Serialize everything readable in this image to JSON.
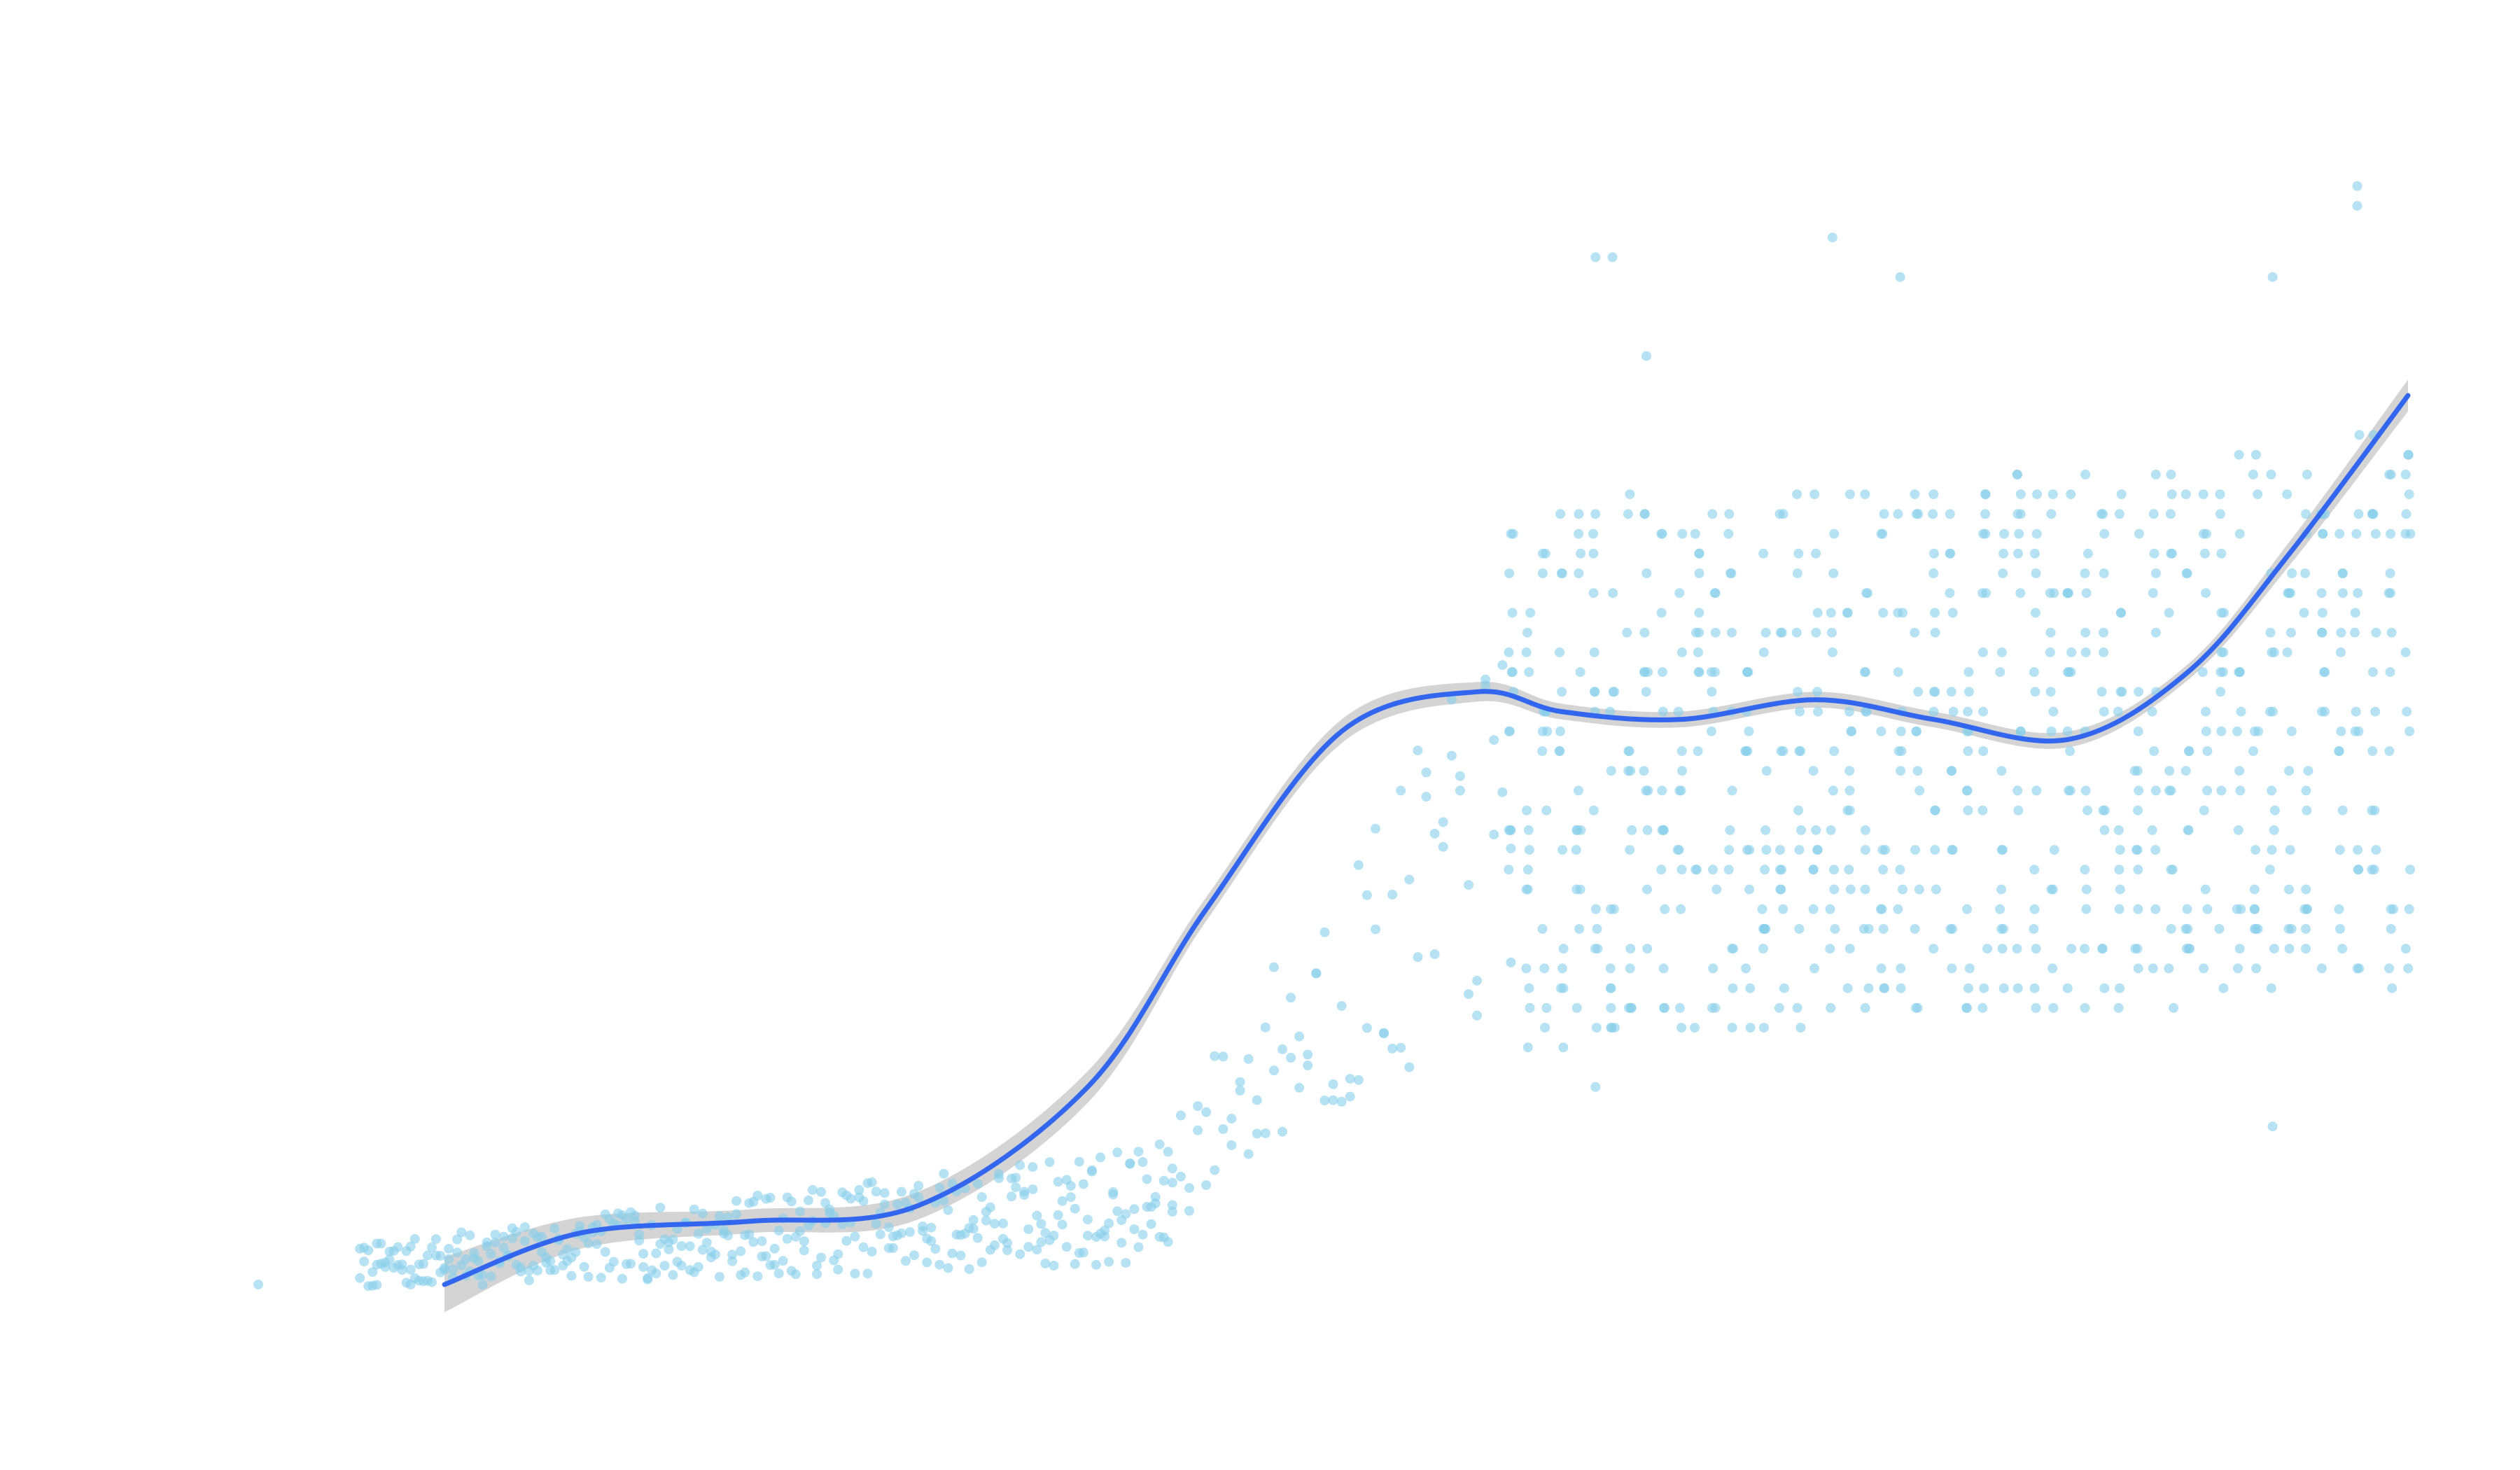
{
  "chart_data": {
    "type": "scatter",
    "title": "",
    "xlabel": "",
    "ylabel": "",
    "axes_visible": false,
    "grid": false,
    "legend": "none",
    "xlim": [
      1900,
      2035
    ],
    "ylim": [
      -6,
      28
    ],
    "colors": {
      "points": "#87CEEB",
      "point_opacity": 0.6,
      "trend": "#3366EE",
      "ribbon": "#B0B0B0"
    },
    "point_generation": {
      "seed": 7,
      "note_free_params": true,
      "segments": [
        {
          "x_range": [
            1912,
            1960
          ],
          "step": 0.25,
          "y_min": -1.5,
          "y_max": 1.8,
          "count_per_x": 2
        },
        {
          "x_range": [
            1960,
            1980
          ],
          "step": 0.5,
          "y_min": -0.5,
          "y_max": 14,
          "count_per_x": 2
        },
        {
          "x_range": [
            1980,
            2033
          ],
          "step": 1,
          "y_min": 6,
          "y_max": 22,
          "count_per_x": 14
        }
      ]
    },
    "sparse_points": [
      {
        "x": 1906,
        "y": -1.5
      },
      {
        "x": 1913,
        "y": -1.0
      },
      {
        "x": 1915,
        "y": -1.5
      },
      {
        "x": 1985,
        "y": 24.5
      },
      {
        "x": 1986,
        "y": 24.5
      },
      {
        "x": 1988,
        "y": 22.0
      },
      {
        "x": 1999,
        "y": 25.0
      },
      {
        "x": 2003,
        "y": 24.0
      },
      {
        "x": 2025,
        "y": 24.0
      },
      {
        "x": 2030,
        "y": 26.3
      },
      {
        "x": 2030,
        "y": 25.8
      },
      {
        "x": 2025,
        "y": 2.5
      },
      {
        "x": 1985,
        "y": 3.5
      }
    ],
    "trend": {
      "x": [
        1917,
        1925,
        1935,
        1945,
        1955,
        1962,
        1970,
        1978,
        1983,
        1990,
        1998,
        2005,
        2013,
        2020,
        2026,
        2033
      ],
      "y": [
        -1.5,
        -0.2,
        0.1,
        0.5,
        3.5,
        8.0,
        12.5,
        13.5,
        13.0,
        12.8,
        13.3,
        12.8,
        12.3,
        14.0,
        17.0,
        21.0
      ],
      "ribbon_halfwidth": [
        0.7,
        0.4,
        0.3,
        0.35,
        0.4,
        0.3,
        0.3,
        0.25,
        0.2,
        0.2,
        0.2,
        0.2,
        0.2,
        0.2,
        0.3,
        0.4
      ]
    }
  }
}
